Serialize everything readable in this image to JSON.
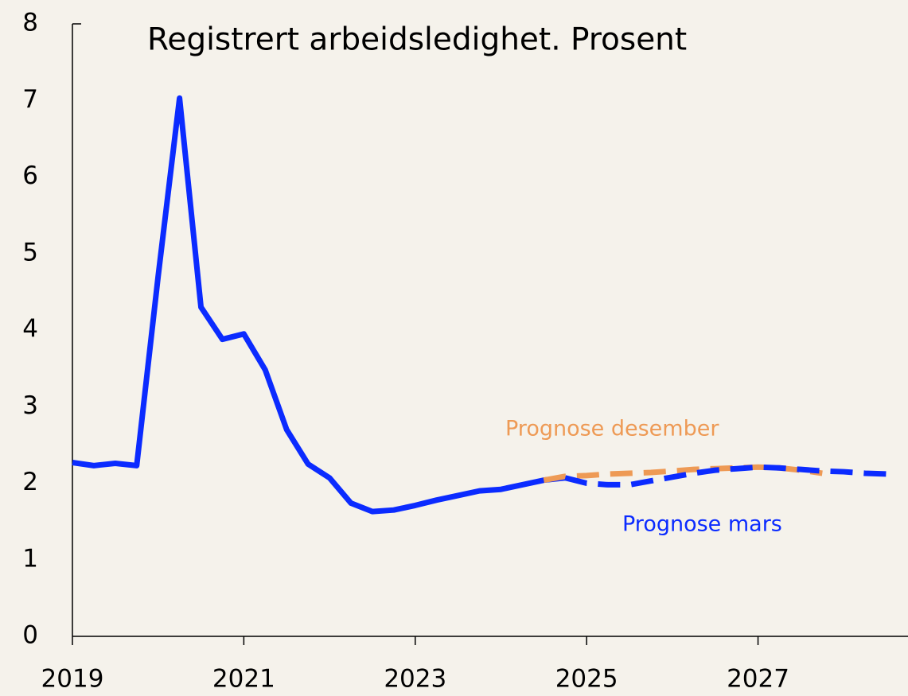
{
  "chart_data": {
    "type": "line",
    "title": "Registrert arbeidsledighet. Prosent",
    "x": [
      2019,
      2019.25,
      2019.5,
      2019.75,
      2020,
      2020.25,
      2020.5,
      2020.75,
      2021,
      2021.25,
      2021.5,
      2021.75,
      2022,
      2022.25,
      2022.5,
      2022.75,
      2023,
      2023.25,
      2023.5,
      2023.75,
      2024,
      2024.25,
      2024.5,
      2024.75,
      2025,
      2025.25,
      2025.5,
      2025.75,
      2026,
      2026.25,
      2026.5,
      2026.75,
      2027,
      2027.25,
      2027.5,
      2027.75,
      2028,
      2028.25,
      2028.5
    ],
    "series": [
      {
        "color": "#0b2bff",
        "dashed": false,
        "values": [
          2.27,
          2.23,
          2.26,
          2.23,
          4.7,
          7.03,
          4.3,
          3.88,
          3.95,
          3.48,
          2.7,
          2.25,
          2.07,
          1.74,
          1.63,
          1.65,
          1.71,
          1.78,
          1.84,
          1.9,
          1.92,
          1.98,
          2.04,
          2.07,
          null,
          null,
          null,
          null,
          null,
          null,
          null,
          null,
          null,
          null,
          null,
          null,
          null,
          null,
          null
        ]
      },
      {
        "name": "Prognose desember",
        "color": "#ee9a55",
        "dashed": true,
        "values": [
          null,
          null,
          null,
          null,
          null,
          null,
          null,
          null,
          null,
          null,
          null,
          null,
          null,
          null,
          null,
          null,
          null,
          null,
          null,
          null,
          null,
          null,
          2.04,
          2.09,
          2.1,
          2.12,
          2.13,
          2.14,
          2.16,
          2.18,
          2.19,
          2.2,
          2.21,
          2.2,
          2.17,
          2.13,
          null,
          null,
          null
        ]
      },
      {
        "name": "Prognose mars",
        "color": "#0b2bff",
        "dashed": true,
        "values": [
          null,
          null,
          null,
          null,
          null,
          null,
          null,
          null,
          null,
          null,
          null,
          null,
          null,
          null,
          null,
          null,
          null,
          null,
          null,
          null,
          null,
          null,
          null,
          2.07,
          2.0,
          1.98,
          1.98,
          2.03,
          2.08,
          2.13,
          2.17,
          2.19,
          2.21,
          2.2,
          2.18,
          2.16,
          2.15,
          2.13,
          2.12
        ]
      }
    ],
    "xlim": [
      2019,
      2028.75
    ],
    "xticks": [
      2019,
      2021,
      2023,
      2025,
      2027
    ],
    "ylim": [
      0,
      8
    ],
    "yticks": [
      0,
      1,
      2,
      3,
      4,
      5,
      6,
      7,
      8
    ]
  }
}
